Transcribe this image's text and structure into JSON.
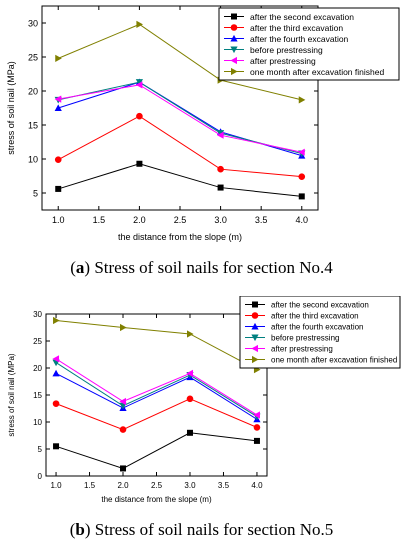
{
  "chart_data": [
    {
      "type": "line",
      "title": "",
      "caption_letter": "a",
      "caption_text": "Stress of soil nails for section No.4",
      "xlabel": "the distance from the slope (m)",
      "ylabel": "stress of soil nail (MPa)",
      "x": [
        1.0,
        2.0,
        3.0,
        4.0
      ],
      "xlim": [
        0.8,
        4.2
      ],
      "ylim": [
        2.5,
        32.5
      ],
      "xticks": [
        "1.0",
        "1.5",
        "2.0",
        "2.5",
        "3.0",
        "3.5",
        "4.0"
      ],
      "yticks": [
        "5",
        "10",
        "15",
        "20",
        "25",
        "30"
      ],
      "grid": false,
      "legend_position": "top-right",
      "series": [
        {
          "name": "after the second excavation",
          "values": [
            5.6,
            9.3,
            5.8,
            4.5
          ],
          "color": "#000000",
          "marker": "square"
        },
        {
          "name": "after the third excavation",
          "values": [
            9.9,
            16.3,
            8.5,
            7.4
          ],
          "color": "#ff0000",
          "marker": "circle"
        },
        {
          "name": "after the fourth excavation",
          "values": [
            17.5,
            21.3,
            14.0,
            10.5
          ],
          "color": "#0000ff",
          "marker": "triangle-up"
        },
        {
          "name": "before prestressing",
          "values": [
            18.7,
            21.3,
            13.8,
            10.8
          ],
          "color": "#008080",
          "marker": "triangle-down"
        },
        {
          "name": "after prestressing",
          "values": [
            18.8,
            20.9,
            13.5,
            11.0
          ],
          "color": "#ff00ff",
          "marker": "triangle-left"
        },
        {
          "name": "one month after excavation finished",
          "values": [
            24.8,
            29.8,
            21.6,
            18.7
          ],
          "color": "#808000",
          "marker": "triangle-right"
        }
      ]
    },
    {
      "type": "line",
      "title": "",
      "caption_letter": "b",
      "caption_text": "Stress of soil nails for section No.5",
      "xlabel": "the distance from the slope (m)",
      "ylabel": "stress of soil nail (MPa)",
      "x": [
        1.0,
        2.0,
        3.0,
        4.0
      ],
      "xlim": [
        0.85,
        4.15
      ],
      "ylim": [
        0,
        30
      ],
      "xticks": [
        "1.0",
        "1.5",
        "2.0",
        "2.5",
        "3.0",
        "3.5",
        "4.0"
      ],
      "yticks": [
        "0",
        "5",
        "10",
        "15",
        "20",
        "25",
        "30"
      ],
      "grid": false,
      "legend_position": "top-right",
      "series": [
        {
          "name": "after the second excavation",
          "values": [
            5.5,
            1.4,
            8.0,
            6.5
          ],
          "color": "#000000",
          "marker": "square"
        },
        {
          "name": "after the third excavation",
          "values": [
            13.4,
            8.6,
            14.3,
            9.0
          ],
          "color": "#ff0000",
          "marker": "circle"
        },
        {
          "name": "after the fourth excavation",
          "values": [
            19.0,
            12.6,
            18.3,
            10.5
          ],
          "color": "#0000ff",
          "marker": "triangle-up"
        },
        {
          "name": "before prestressing",
          "values": [
            21.0,
            13.0,
            18.7,
            11.0
          ],
          "color": "#008080",
          "marker": "triangle-down"
        },
        {
          "name": "after prestressing",
          "values": [
            21.7,
            13.8,
            19.0,
            11.3
          ],
          "color": "#ff00ff",
          "marker": "triangle-left"
        },
        {
          "name": "one month after excavation finished",
          "values": [
            28.8,
            27.5,
            26.3,
            19.7
          ],
          "color": "#808000",
          "marker": "triangle-right"
        }
      ]
    }
  ]
}
